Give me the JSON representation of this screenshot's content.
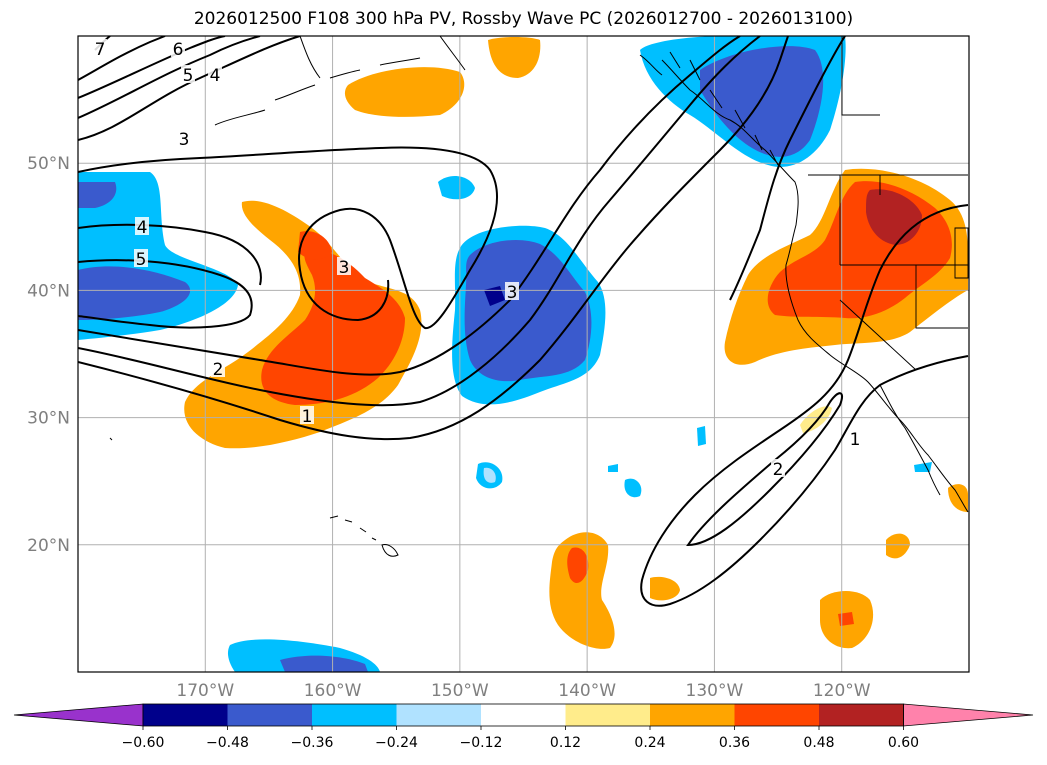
{
  "title": "2026012500 F108 300 hPa PV, Rossby Wave PC (2026012700 - 2026013100)",
  "map": {
    "extent": {
      "lon_min": -180,
      "lon_max": -110,
      "lat_min": 10,
      "lat_max": 60
    },
    "gridlines": true,
    "lat_ticks": [
      {
        "value": 50,
        "label": "50°N"
      },
      {
        "value": 40,
        "label": "40°N"
      },
      {
        "value": 30,
        "label": "30°N"
      },
      {
        "value": 20,
        "label": "20°N"
      }
    ],
    "lon_ticks": [
      {
        "value": -170,
        "label": "170°W"
      },
      {
        "value": -160,
        "label": "160°W"
      },
      {
        "value": -150,
        "label": "150°W"
      },
      {
        "value": -140,
        "label": "140°W"
      },
      {
        "value": -130,
        "label": "130°W"
      },
      {
        "value": -120,
        "label": "120°W"
      }
    ]
  },
  "colorbar": {
    "levels": [
      "−0.60",
      "−0.48",
      "−0.36",
      "−0.24",
      "−0.12",
      "0.12",
      "0.24",
      "0.36",
      "0.48",
      "0.60"
    ],
    "colors": [
      "#9932cc",
      "#00008b",
      "#3a5acd",
      "#00bfff",
      "#b0e2ff",
      "#ffffff",
      "#ffec8b",
      "#ffa500",
      "#ff4500",
      "#b22222",
      "#ff82ab"
    ],
    "extend": "both"
  },
  "contours": {
    "color": "#000000",
    "labels": [
      "7",
      "6",
      "5",
      "4",
      "3",
      "4",
      "5",
      "3",
      "3",
      "2",
      "1",
      "2",
      "1"
    ]
  },
  "fields": {
    "warm_anomalies": [
      {
        "name": "central-pacific-warm",
        "level": 0.36
      },
      {
        "name": "us-west-warm",
        "level": 0.48
      },
      {
        "name": "aleutian-warm",
        "level": 0.24
      },
      {
        "name": "gulf-alaska-warm",
        "level": 0.24
      },
      {
        "name": "subtropical-warm",
        "level": 0.36
      },
      {
        "name": "hawaii-south-warm",
        "level": 0.36
      },
      {
        "name": "mexico-warm",
        "level": 0.24
      }
    ],
    "cold_anomalies": [
      {
        "name": "east-pacific-cold",
        "level": -0.48
      },
      {
        "name": "bc-coast-cold",
        "level": -0.36
      },
      {
        "name": "west-pacific-cold",
        "level": -0.36
      },
      {
        "name": "south-edge-cold",
        "level": -0.36
      }
    ]
  }
}
